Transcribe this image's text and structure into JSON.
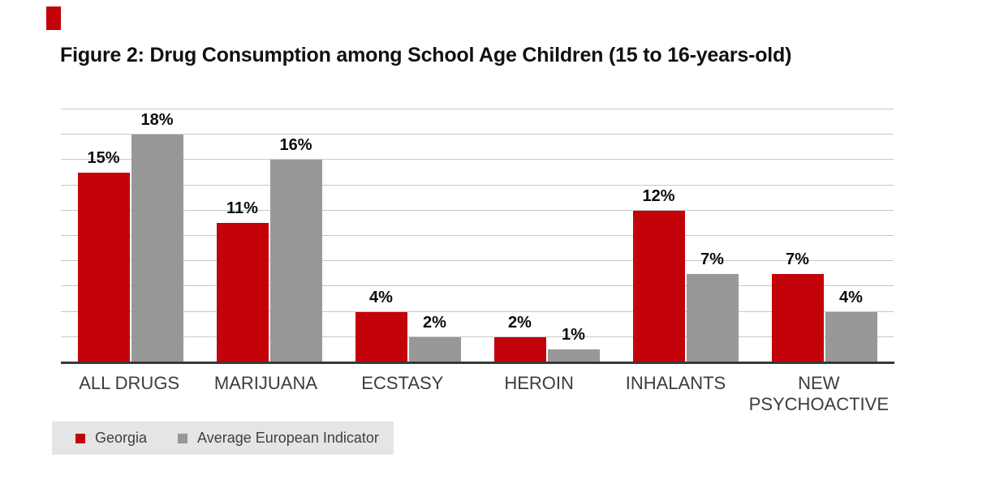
{
  "figure": {
    "title": "Figure 2: Drug Consumption among School Age Children (15 to 16-years-old)"
  },
  "chart_data": {
    "type": "bar",
    "title": "Figure 2: Drug Consumption among School Age Children (15 to 16-years-old)",
    "categories": [
      "ALL DRUGS",
      "MARIJUANA",
      "ECSTASY",
      "HEROIN",
      "INHALANTS",
      "NEW PSYCHOACTIVE"
    ],
    "series": [
      {
        "name": "Georgia",
        "color": "#c30309",
        "values": [
          15,
          11,
          4,
          2,
          12,
          7
        ]
      },
      {
        "name": "Average European Indicator",
        "color": "#989898",
        "values": [
          18,
          16,
          2,
          1,
          7,
          4
        ]
      }
    ],
    "value_labels": [
      "15%",
      "18%",
      "11%",
      "16%",
      "4%",
      "2%",
      "2%",
      "1%",
      "12%",
      "7%",
      "7%",
      "4%"
    ],
    "value_suffix": "%",
    "xlabel": "",
    "ylabel": "",
    "ylim": [
      0,
      20
    ],
    "gridline_step": 2,
    "grid": true,
    "legend_position": "bottom-left"
  },
  "colors": {
    "georgia_red": "#c30309",
    "average_gray": "#989898",
    "gridline": "#c8c8c8",
    "axis": "#383838",
    "legend_background": "#e5e5e5",
    "title_text": "#111111",
    "label_text": "#3c3c3c"
  }
}
